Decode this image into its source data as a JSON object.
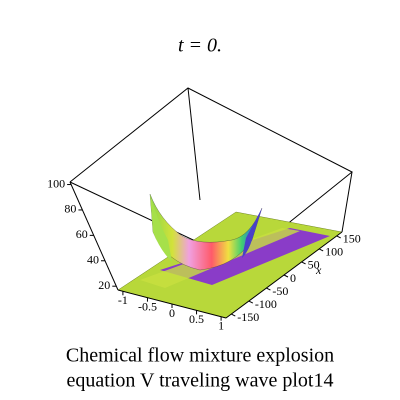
{
  "chart_data": {
    "type": "surface3d",
    "title": "t = 0.",
    "caption": [
      "Chemical flow mixture explosion",
      "equation V traveling wave plot14"
    ],
    "x_label": "x",
    "xlim": [
      -165,
      165
    ],
    "xticks": [
      -150,
      -100,
      -50,
      0,
      50,
      100,
      150
    ],
    "ylim": [
      -1.1,
      1.1
    ],
    "yticks": [
      -1,
      -0.5,
      0,
      0.5,
      1
    ],
    "zlim": [
      17,
      102
    ],
    "zticks": [
      20,
      40,
      60,
      80,
      100
    ]
  }
}
